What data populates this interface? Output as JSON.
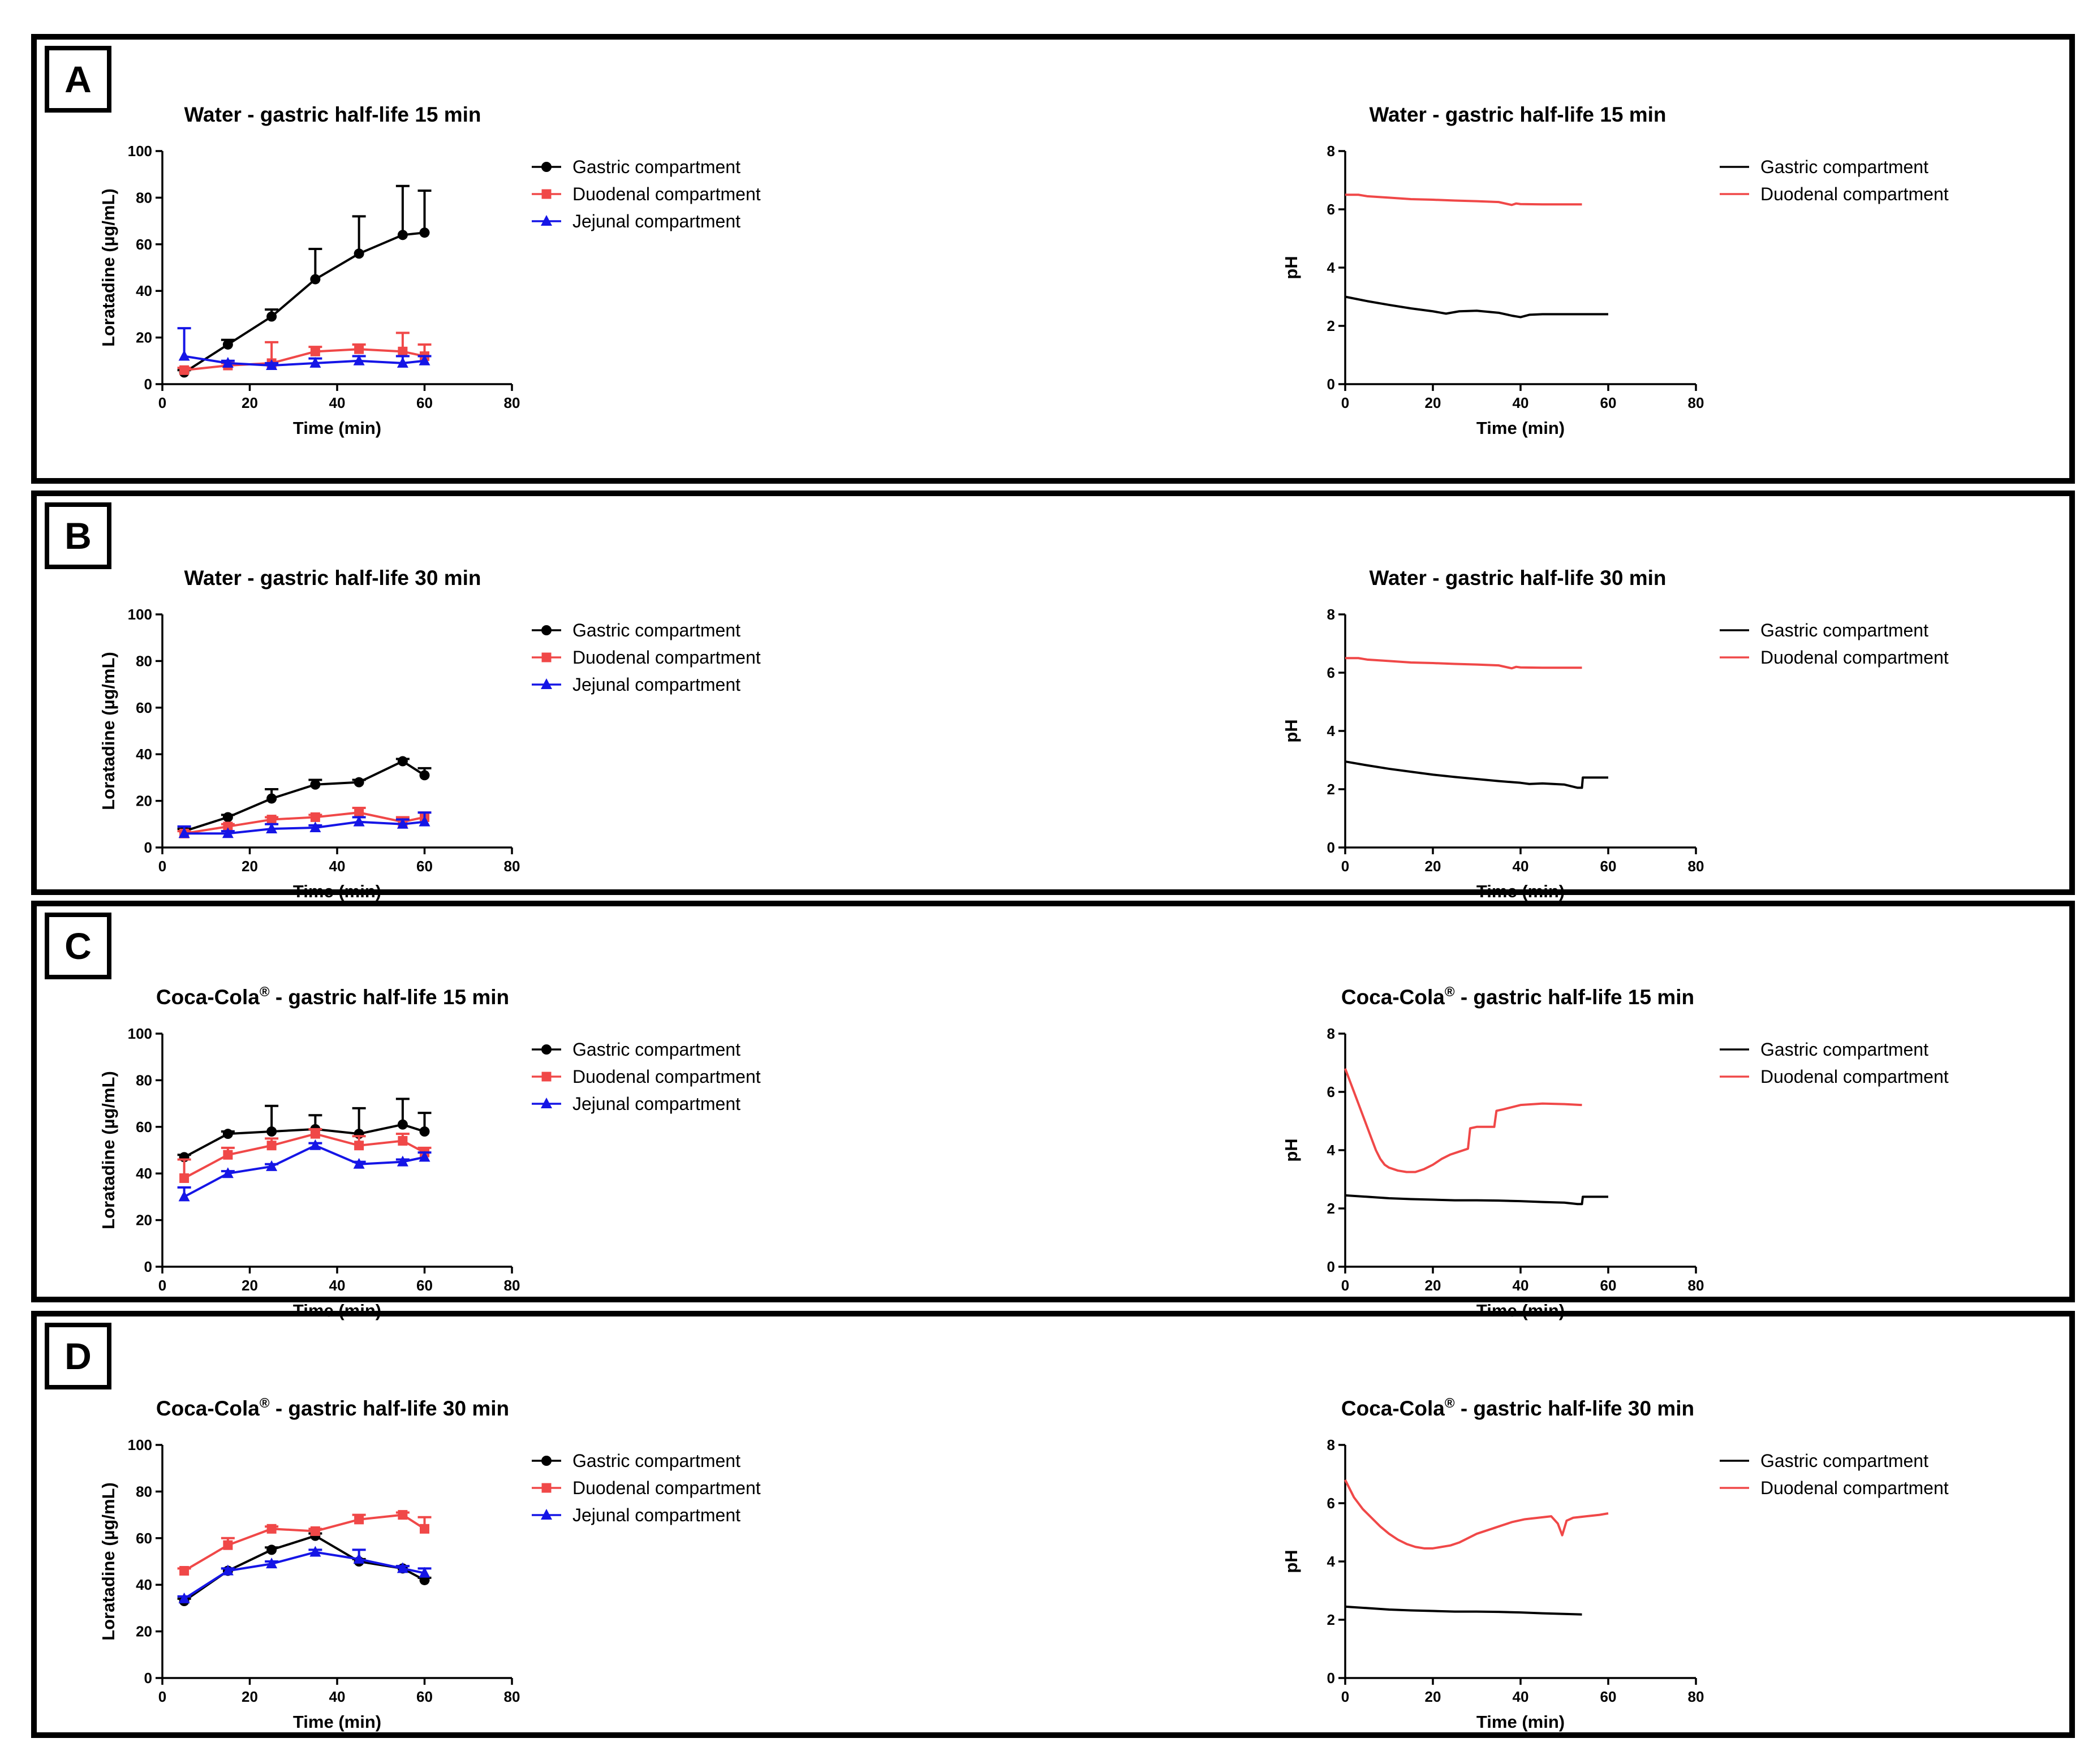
{
  "colors": {
    "gastric": "#000000",
    "duodenal": "#f04848",
    "jejunal": "#1515e6"
  },
  "panels": [
    {
      "tag": "A",
      "conc": {
        "title": "Water - gastric half-life 15 min",
        "xlabel": "Time (min)",
        "ylabel": "Loratadine (µg/mL)",
        "xlim": [
          0,
          80
        ],
        "ylim": [
          0,
          100
        ],
        "xticks": [
          "0",
          "20",
          "40",
          "60",
          "80"
        ],
        "yticks": [
          "0",
          "20",
          "40",
          "60",
          "80",
          "100"
        ],
        "legend": [
          "Gastric compartment",
          "Duodenal compartment",
          "Jejunal compartment"
        ]
      },
      "ph": {
        "title": "Water - gastric half-life 15 min",
        "xlabel": "Time (min)",
        "ylabel": "pH",
        "xlim": [
          0,
          80
        ],
        "ylim": [
          0,
          8
        ],
        "xticks": [
          "0",
          "20",
          "40",
          "60",
          "80"
        ],
        "yticks": [
          "0",
          "2",
          "4",
          "6",
          "8"
        ],
        "legend": [
          "Gastric compartment",
          "Duodenal compartment"
        ]
      }
    },
    {
      "tag": "B",
      "conc": {
        "title": "Water - gastric half-life 30 min",
        "xlabel": "Time (min)",
        "ylabel": "Loratadine (µg/mL)",
        "xlim": [
          0,
          80
        ],
        "ylim": [
          0,
          100
        ],
        "xticks": [
          "0",
          "20",
          "40",
          "60",
          "80"
        ],
        "yticks": [
          "0",
          "20",
          "40",
          "60",
          "80",
          "100"
        ],
        "legend": [
          "Gastric compartment",
          "Duodenal compartment",
          "Jejunal compartment"
        ]
      },
      "ph": {
        "title": "Water - gastric half-life 30 min",
        "xlabel": "Time (min)",
        "ylabel": "pH",
        "xlim": [
          0,
          80
        ],
        "ylim": [
          0,
          8
        ],
        "xticks": [
          "0",
          "20",
          "40",
          "60",
          "80"
        ],
        "yticks": [
          "0",
          "2",
          "4",
          "6",
          "8"
        ],
        "legend": [
          "Gastric compartment",
          "Duodenal compartment"
        ]
      }
    },
    {
      "tag": "C",
      "conc": {
        "title": "Coca-Cola® - gastric half-life 15 min",
        "xlabel": "Time (min)",
        "ylabel": "Loratadine (µg/mL)",
        "xlim": [
          0,
          80
        ],
        "ylim": [
          0,
          100
        ],
        "xticks": [
          "0",
          "20",
          "40",
          "60",
          "80"
        ],
        "yticks": [
          "0",
          "20",
          "40",
          "60",
          "80",
          "100"
        ],
        "legend": [
          "Gastric compartment",
          "Duodenal compartment",
          "Jejunal compartment"
        ]
      },
      "ph": {
        "title": "Coca-Cola® - gastric half-life 15 min",
        "xlabel": "Time (min)",
        "ylabel": "pH",
        "xlim": [
          0,
          80
        ],
        "ylim": [
          0,
          8
        ],
        "xticks": [
          "0",
          "20",
          "40",
          "60",
          "80"
        ],
        "yticks": [
          "0",
          "2",
          "4",
          "6",
          "8"
        ],
        "legend": [
          "Gastric compartment",
          "Duodenal compartment"
        ]
      }
    },
    {
      "tag": "D",
      "conc": {
        "title": "Coca-Cola® - gastric half-life 30 min",
        "xlabel": "Time (min)",
        "ylabel": "Loratadine (µg/mL)",
        "xlim": [
          0,
          80
        ],
        "ylim": [
          0,
          100
        ],
        "xticks": [
          "0",
          "20",
          "40",
          "60",
          "80"
        ],
        "yticks": [
          "0",
          "20",
          "40",
          "60",
          "80",
          "100"
        ],
        "legend": [
          "Gastric compartment",
          "Duodenal compartment",
          "Jejunal compartment"
        ]
      },
      "ph": {
        "title": "Coca-Cola® - gastric half-life 30 min",
        "xlabel": "Time (min)",
        "ylabel": "pH",
        "xlim": [
          0,
          80
        ],
        "ylim": [
          0,
          8
        ],
        "xticks": [
          "0",
          "20",
          "40",
          "60",
          "80"
        ],
        "yticks": [
          "0",
          "2",
          "4",
          "6",
          "8"
        ],
        "legend": [
          "Gastric compartment",
          "Duodenal compartment"
        ]
      }
    }
  ],
  "chart_data": [
    {
      "panel": "A",
      "type": "line",
      "title": "Water - gastric half-life 15 min",
      "xlabel": "Time (min)",
      "ylabel": "Loratadine (µg/mL)",
      "xlim": [
        0,
        80
      ],
      "ylim": [
        0,
        100
      ],
      "x": [
        5,
        15,
        25,
        35,
        45,
        55,
        60
      ],
      "series": [
        {
          "name": "Gastric compartment",
          "marker": "circle",
          "values": [
            5,
            17,
            29,
            45,
            56,
            64,
            65
          ],
          "err": [
            1,
            2,
            3,
            13,
            16,
            21,
            18
          ]
        },
        {
          "name": "Duodenal compartment",
          "marker": "square",
          "values": [
            6,
            8,
            9,
            14,
            15,
            14,
            12
          ],
          "err": [
            1,
            1,
            9,
            2,
            2,
            8,
            5
          ]
        },
        {
          "name": "Jejunal compartment",
          "marker": "triangle",
          "values": [
            12,
            9,
            8,
            9,
            10,
            9,
            10
          ],
          "err": [
            12,
            1,
            1,
            2,
            2,
            3,
            2
          ]
        }
      ]
    },
    {
      "panel": "A",
      "type": "line",
      "title": "Water - gastric half-life 15 min",
      "xlabel": "Time (min)",
      "ylabel": "pH",
      "xlim": [
        0,
        80
      ],
      "ylim": [
        0,
        8
      ],
      "series": [
        {
          "name": "Gastric compartment",
          "x": [
            0,
            5,
            10,
            15,
            20,
            23,
            26,
            30,
            35,
            38,
            40,
            42,
            45,
            50,
            54,
            60
          ],
          "values": [
            3.0,
            2.85,
            2.72,
            2.6,
            2.5,
            2.42,
            2.5,
            2.52,
            2.45,
            2.35,
            2.3,
            2.38,
            2.4,
            2.4,
            2.4,
            2.4
          ]
        },
        {
          "name": "Duodenal compartment",
          "x": [
            0,
            3,
            5,
            10,
            15,
            20,
            25,
            30,
            35,
            38,
            39,
            40,
            45,
            50,
            54
          ],
          "values": [
            6.5,
            6.5,
            6.45,
            6.4,
            6.35,
            6.33,
            6.3,
            6.28,
            6.25,
            6.15,
            6.2,
            6.18,
            6.17,
            6.17,
            6.17
          ]
        }
      ]
    },
    {
      "panel": "B",
      "type": "line",
      "title": "Water - gastric half-life 30 min",
      "xlabel": "Time (min)",
      "ylabel": "Loratadine (µg/mL)",
      "xlim": [
        0,
        80
      ],
      "ylim": [
        0,
        100
      ],
      "x": [
        5,
        15,
        25,
        35,
        45,
        55,
        60
      ],
      "series": [
        {
          "name": "Gastric compartment",
          "marker": "circle",
          "values": [
            7,
            13,
            21,
            27,
            28,
            37,
            31
          ],
          "err": [
            1,
            1,
            4,
            2,
            1,
            1,
            3
          ]
        },
        {
          "name": "Duodenal compartment",
          "marker": "square",
          "values": [
            6,
            9,
            12,
            13,
            15,
            11,
            13
          ],
          "err": [
            1,
            1,
            1,
            1,
            2,
            2,
            2
          ]
        },
        {
          "name": "Jejunal compartment",
          "marker": "triangle",
          "values": [
            6,
            6,
            8,
            8.5,
            11,
            10,
            11
          ],
          "err": [
            3,
            1,
            2,
            1,
            2,
            2,
            4
          ]
        }
      ]
    },
    {
      "panel": "B",
      "type": "line",
      "title": "Water - gastric half-life 30 min",
      "xlabel": "Time (min)",
      "ylabel": "pH",
      "xlim": [
        0,
        80
      ],
      "ylim": [
        0,
        8
      ],
      "series": [
        {
          "name": "Gastric compartment",
          "x": [
            0,
            5,
            10,
            15,
            20,
            25,
            30,
            35,
            40,
            42,
            45,
            50,
            53,
            54,
            54.2,
            60
          ],
          "values": [
            2.95,
            2.82,
            2.7,
            2.6,
            2.5,
            2.42,
            2.35,
            2.28,
            2.22,
            2.18,
            2.2,
            2.16,
            2.05,
            2.05,
            2.4,
            2.4
          ]
        },
        {
          "name": "Duodenal compartment",
          "x": [
            0,
            3,
            5,
            10,
            15,
            20,
            25,
            30,
            35,
            38,
            39,
            40,
            45,
            50,
            54
          ],
          "values": [
            6.5,
            6.5,
            6.45,
            6.4,
            6.35,
            6.33,
            6.3,
            6.28,
            6.25,
            6.15,
            6.2,
            6.18,
            6.17,
            6.17,
            6.17
          ]
        }
      ]
    },
    {
      "panel": "C",
      "type": "line",
      "title": "Coca-Cola® - gastric half-life 15 min",
      "xlabel": "Time (min)",
      "ylabel": "Loratadine (µg/mL)",
      "xlim": [
        0,
        80
      ],
      "ylim": [
        0,
        100
      ],
      "x": [
        5,
        15,
        25,
        35,
        45,
        55,
        60
      ],
      "series": [
        {
          "name": "Gastric compartment",
          "marker": "circle",
          "values": [
            47,
            57,
            58,
            59,
            57,
            61,
            58
          ],
          "err": [
            1,
            1,
            11,
            6,
            11,
            11,
            8
          ]
        },
        {
          "name": "Duodenal compartment",
          "marker": "square",
          "values": [
            38,
            48,
            52,
            57,
            52,
            54,
            49
          ],
          "err": [
            8,
            3,
            3,
            2,
            4,
            3,
            2
          ]
        },
        {
          "name": "Jejunal compartment",
          "marker": "triangle",
          "values": [
            30,
            40,
            43,
            52,
            44,
            45,
            47
          ],
          "err": [
            4,
            1,
            1,
            1,
            1,
            1,
            2
          ]
        }
      ]
    },
    {
      "panel": "C",
      "type": "line",
      "title": "Coca-Cola® - gastric half-life 15 min",
      "xlabel": "Time (min)",
      "ylabel": "pH",
      "xlim": [
        0,
        80
      ],
      "ylim": [
        0,
        8
      ],
      "series": [
        {
          "name": "Gastric compartment",
          "x": [
            0,
            5,
            10,
            15,
            20,
            25,
            30,
            35,
            40,
            45,
            50,
            53,
            54,
            54.2,
            60
          ],
          "values": [
            2.45,
            2.4,
            2.35,
            2.32,
            2.3,
            2.28,
            2.28,
            2.27,
            2.25,
            2.22,
            2.2,
            2.15,
            2.15,
            2.4,
            2.4
          ]
        },
        {
          "name": "Duodenal compartment",
          "x": [
            0,
            1,
            2,
            3,
            4,
            5,
            6,
            7,
            8,
            9,
            10,
            12,
            14,
            16,
            18,
            20,
            22,
            24,
            26,
            28,
            28.5,
            30,
            33,
            34,
            34.5,
            36,
            40,
            45,
            50,
            54
          ],
          "values": [
            6.8,
            6.4,
            6.0,
            5.6,
            5.2,
            4.8,
            4.4,
            4.0,
            3.7,
            3.5,
            3.4,
            3.3,
            3.25,
            3.25,
            3.35,
            3.5,
            3.7,
            3.85,
            3.95,
            4.05,
            4.75,
            4.8,
            4.8,
            4.8,
            5.35,
            5.4,
            5.55,
            5.6,
            5.58,
            5.55
          ]
        }
      ]
    },
    {
      "panel": "D",
      "type": "line",
      "title": "Coca-Cola® - gastric half-life 30 min",
      "xlabel": "Time (min)",
      "ylabel": "Loratadine (µg/mL)",
      "xlim": [
        0,
        80
      ],
      "ylim": [
        0,
        100
      ],
      "x": [
        5,
        15,
        25,
        35,
        45,
        55,
        60
      ],
      "series": [
        {
          "name": "Gastric compartment",
          "marker": "circle",
          "values": [
            33,
            46,
            55,
            61,
            50,
            47,
            42
          ],
          "err": [
            1,
            1,
            1,
            1,
            1,
            1,
            1
          ]
        },
        {
          "name": "Duodenal compartment",
          "marker": "square",
          "values": [
            46,
            57,
            64,
            63,
            68,
            70,
            64
          ],
          "err": [
            1,
            3,
            1,
            1,
            2,
            1,
            5
          ]
        },
        {
          "name": "Jejunal compartment",
          "marker": "triangle",
          "values": [
            34,
            46,
            49,
            54,
            51,
            47,
            45
          ],
          "err": [
            1,
            1,
            1,
            1,
            4,
            1,
            2
          ]
        }
      ]
    },
    {
      "panel": "D",
      "type": "line",
      "title": "Coca-Cola® - gastric half-life 30 min",
      "xlabel": "Time (min)",
      "ylabel": "pH",
      "xlim": [
        0,
        80
      ],
      "ylim": [
        0,
        8
      ],
      "series": [
        {
          "name": "Gastric compartment",
          "x": [
            0,
            5,
            10,
            15,
            20,
            25,
            30,
            35,
            40,
            45,
            50,
            54
          ],
          "values": [
            2.45,
            2.4,
            2.35,
            2.32,
            2.3,
            2.28,
            2.28,
            2.27,
            2.25,
            2.22,
            2.2,
            2.18
          ]
        },
        {
          "name": "Duodenal compartment",
          "x": [
            0,
            2,
            4,
            6,
            8,
            10,
            12,
            14,
            16,
            18,
            20,
            22,
            24,
            26,
            28,
            30,
            32,
            35,
            38,
            41,
            44,
            47,
            48.5,
            49.5,
            50.5,
            52,
            55,
            58,
            60
          ],
          "values": [
            6.8,
            6.2,
            5.8,
            5.5,
            5.2,
            4.95,
            4.75,
            4.6,
            4.5,
            4.45,
            4.45,
            4.5,
            4.55,
            4.65,
            4.8,
            4.95,
            5.05,
            5.2,
            5.35,
            5.45,
            5.5,
            5.55,
            5.3,
            4.9,
            5.4,
            5.5,
            5.55,
            5.6,
            5.65
          ]
        }
      ]
    }
  ]
}
